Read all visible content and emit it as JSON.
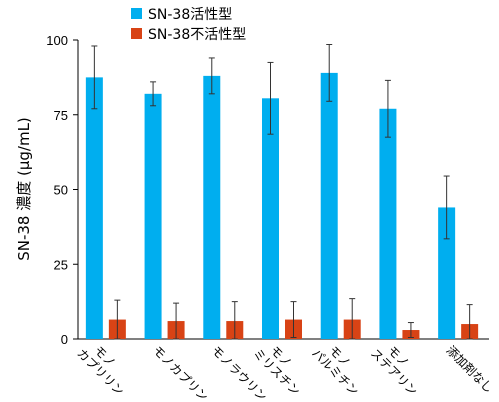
{
  "chart_data": {
    "type": "bar",
    "ylabel": "SN-38 濃度 (µg/mL)",
    "ylim": [
      0,
      100
    ],
    "yticks": [
      "0",
      "25",
      "50",
      "75",
      "100"
    ],
    "yticks_values": [
      0,
      25,
      50,
      75,
      100
    ],
    "legend_position": "top",
    "categories": [
      "モノ\nカプリリン",
      "モノカプリン",
      "モノラウリン",
      "モノ\nミリスチン",
      "モノ\nパルミチン",
      "モノ\nステアリン",
      "添加剤なし"
    ],
    "series": [
      {
        "name": "SN-38活性型",
        "color": "#00AEEF",
        "values": [
          87.5,
          82,
          88,
          80.5,
          89,
          77,
          44
        ],
        "errors": [
          10.5,
          4,
          6,
          12,
          9.5,
          9.5,
          10.5
        ]
      },
      {
        "name": "SN-38不活性型",
        "color": "#D84315",
        "values": [
          6.5,
          6,
          6,
          6.5,
          6.5,
          3,
          5
        ],
        "errors": [
          6.5,
          6,
          6.5,
          6,
          7,
          2.5,
          6.5
        ]
      }
    ]
  }
}
